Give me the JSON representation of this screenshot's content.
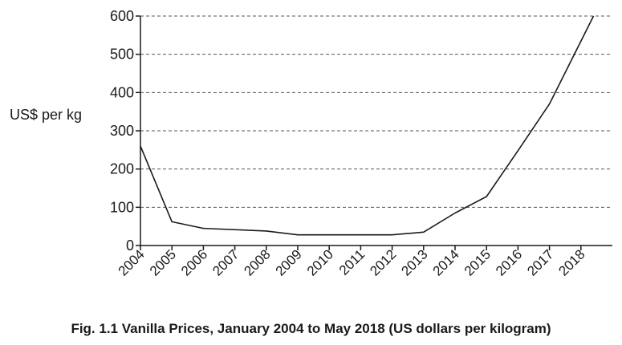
{
  "chart_data": {
    "type": "line",
    "title": "",
    "caption": "Fig. 1.1 Vanilla Prices, January 2004 to May 2018 (US dollars per kilogram)",
    "xlabel": "",
    "ylabel": "US$ per kg",
    "xlim": [
      2004,
      2019
    ],
    "ylim": [
      0,
      600
    ],
    "x_ticks": [
      "2004",
      "2005",
      "2006",
      "2007",
      "2008",
      "2009",
      "2010",
      "2011",
      "2012",
      "2013",
      "2014",
      "2015",
      "2016",
      "2017",
      "2018"
    ],
    "y_ticks": [
      0,
      100,
      200,
      300,
      400,
      500,
      600
    ],
    "grid": "horizontal dashed",
    "legend": "none",
    "line_color": "#1a1a1a",
    "series": [
      {
        "x": [
          2004,
          2005,
          2006,
          2008,
          2009,
          2012,
          2013,
          2014,
          2015,
          2016,
          2017,
          2018.4
        ],
        "y": [
          260,
          62,
          45,
          38,
          28,
          28,
          35,
          85,
          128,
          248,
          370,
          600
        ]
      }
    ]
  }
}
